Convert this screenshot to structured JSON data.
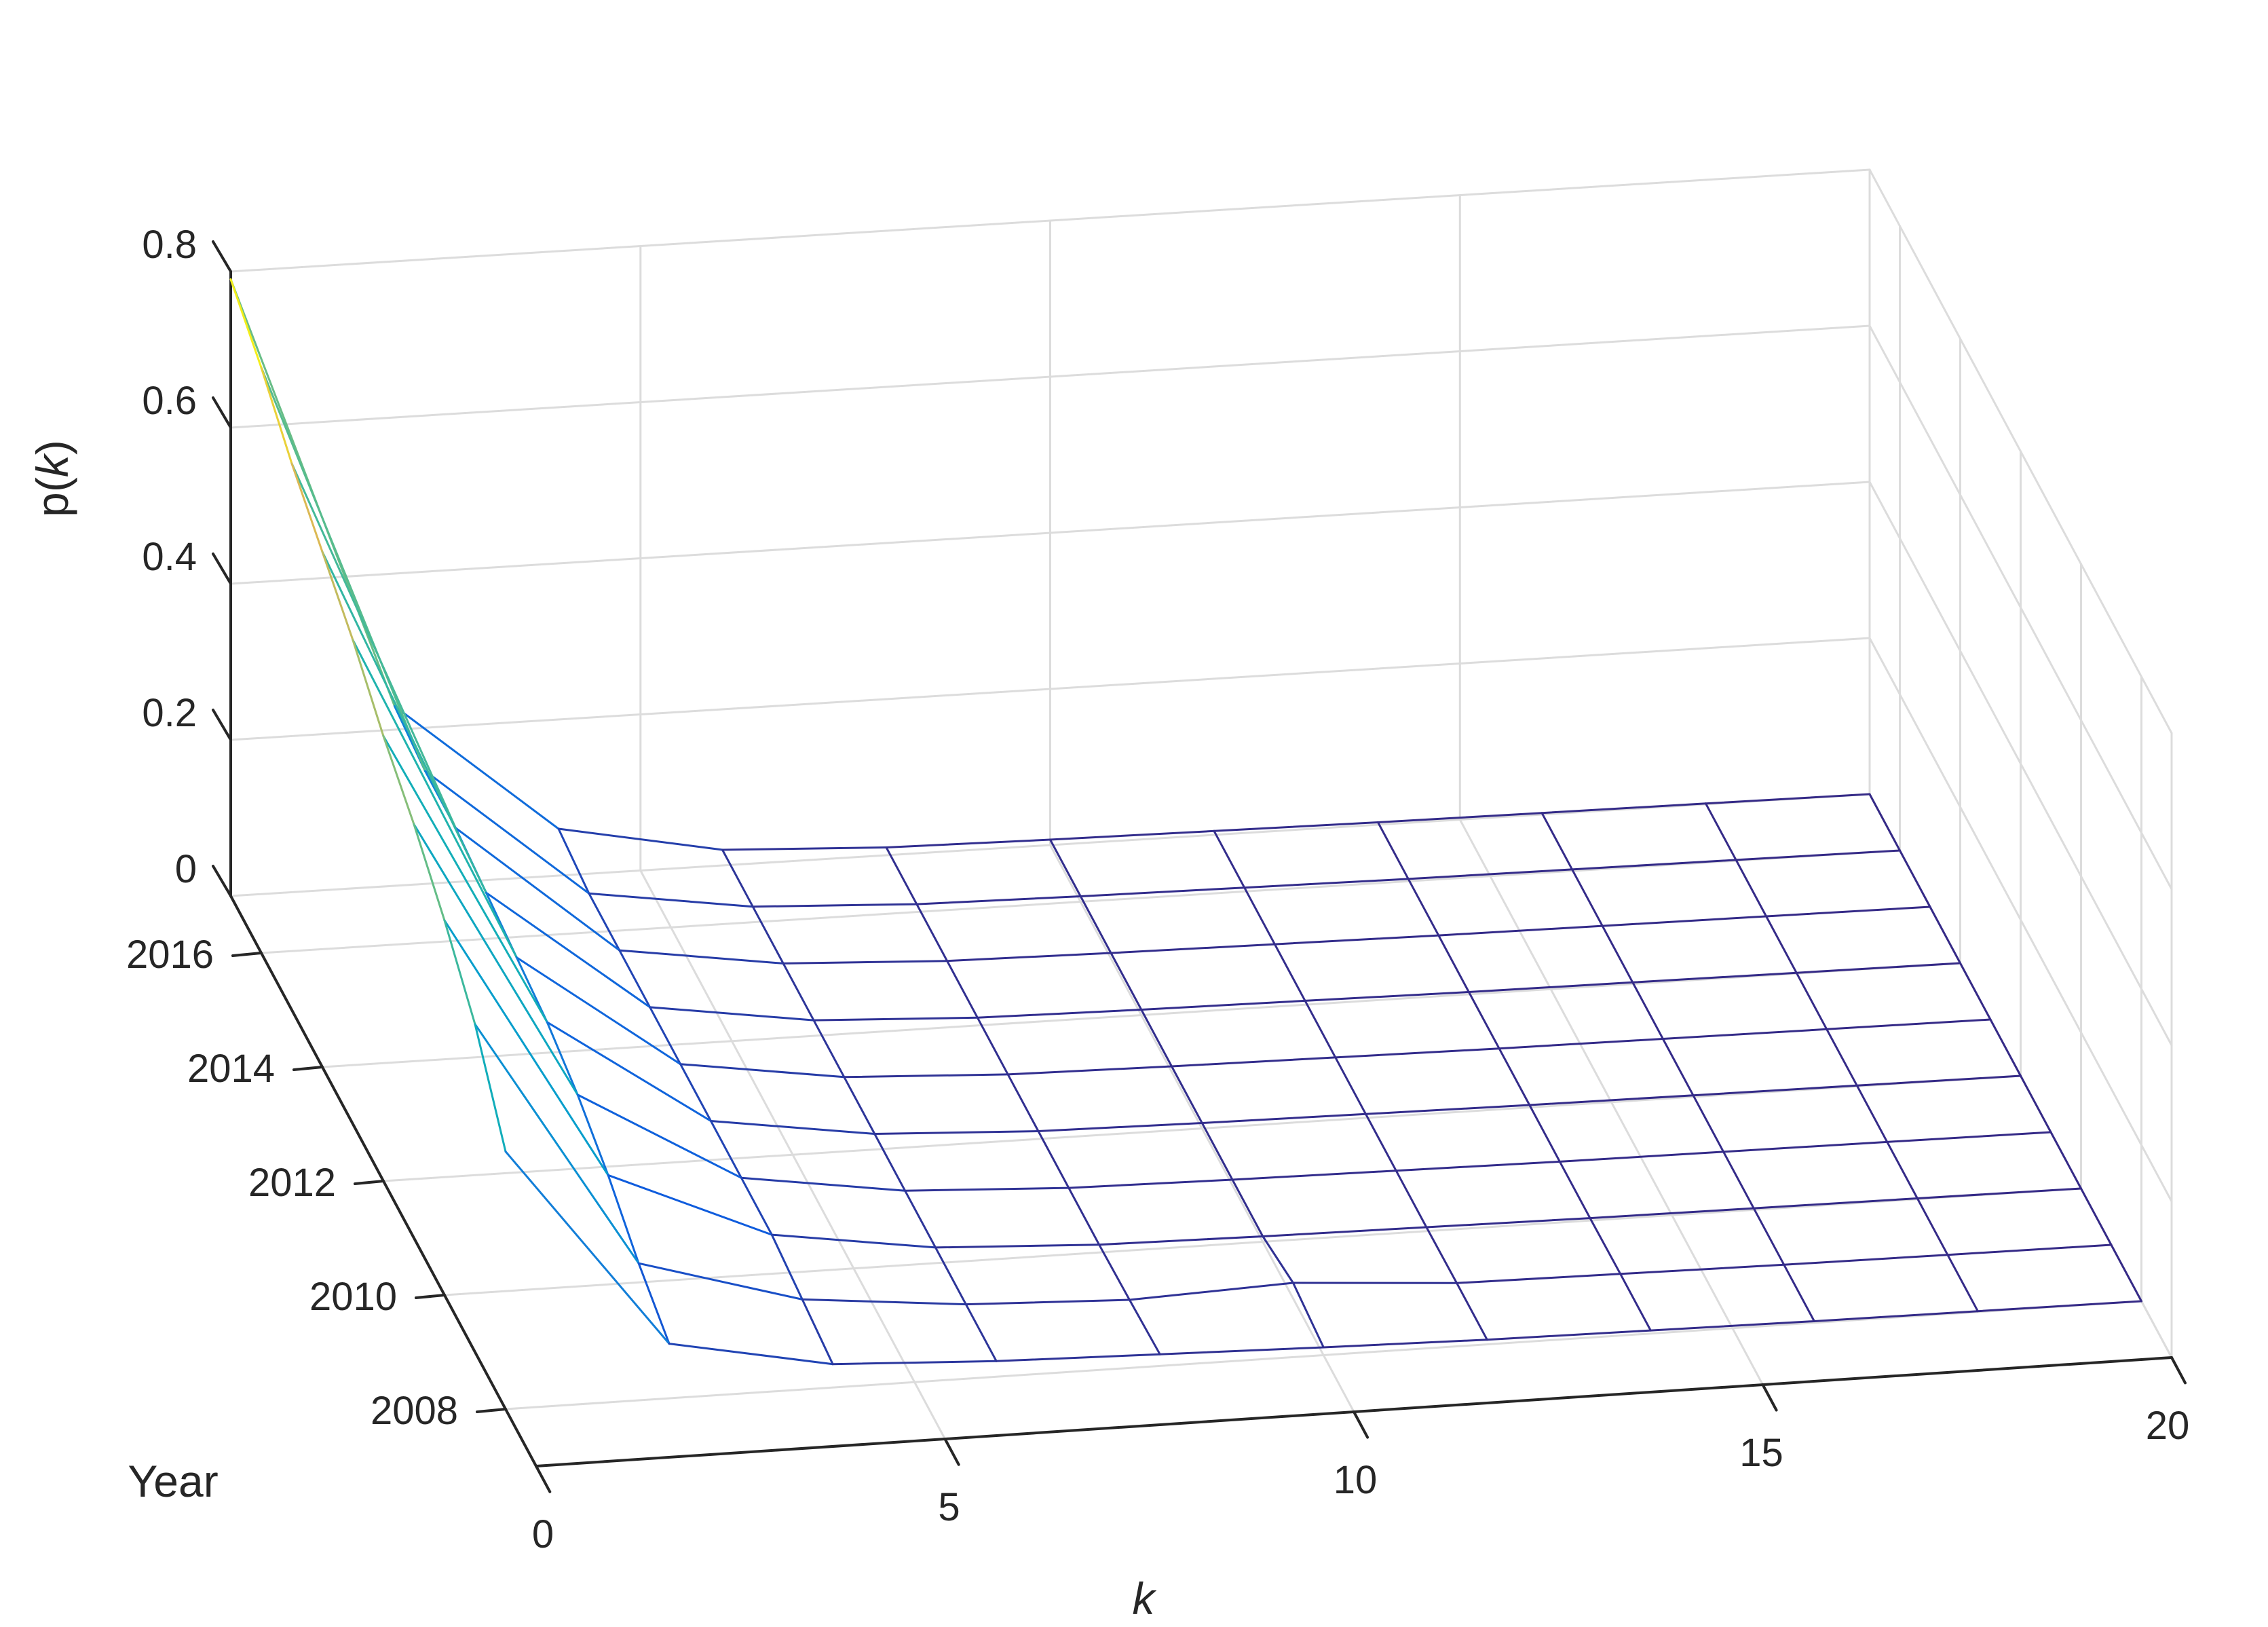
{
  "chart_data": {
    "type": "surface_mesh",
    "title": "",
    "xlabel": "k",
    "ylabel": "Year",
    "zlabel_prefix": "p(",
    "zlabel_var": "k",
    "zlabel_suffix": ")",
    "xlim": [
      0,
      20
    ],
    "ylim": [
      2007,
      2017
    ],
    "zlim": [
      0,
      0.8
    ],
    "x_ticks": [
      "0",
      "5",
      "10",
      "15",
      "20"
    ],
    "y_ticks": [
      "2008",
      "2010",
      "2012",
      "2014",
      "2016"
    ],
    "z_ticks": [
      "0",
      "0.2",
      "0.4",
      "0.6",
      "0.8"
    ],
    "grid": true,
    "colormap": "parula",
    "k_values": [
      0,
      2,
      4,
      6,
      8,
      10,
      12,
      14,
      16,
      18,
      20
    ],
    "years": [
      2008,
      2009,
      2010,
      2011,
      2012,
      2013,
      2014,
      2015,
      2016,
      2017
    ],
    "p": [
      [
        0.33,
        0.07,
        0.03,
        0.02,
        0.015,
        0.01,
        0.006,
        0.004,
        0.002,
        0.001,
        0.0
      ],
      [
        0.42,
        0.1,
        0.04,
        0.02,
        0.012,
        0.02,
        0.006,
        0.004,
        0.002,
        0.001,
        0.0
      ],
      [
        0.48,
        0.14,
        0.05,
        0.02,
        0.01,
        0.007,
        0.005,
        0.003,
        0.002,
        0.001,
        0.0
      ],
      [
        0.53,
        0.17,
        0.05,
        0.02,
        0.01,
        0.007,
        0.005,
        0.003,
        0.002,
        0.001,
        0.0
      ],
      [
        0.57,
        0.19,
        0.05,
        0.02,
        0.01,
        0.007,
        0.005,
        0.003,
        0.002,
        0.001,
        0.0
      ],
      [
        0.62,
        0.2,
        0.05,
        0.02,
        0.01,
        0.007,
        0.005,
        0.003,
        0.002,
        0.001,
        0.0
      ],
      [
        0.66,
        0.21,
        0.05,
        0.02,
        0.01,
        0.007,
        0.005,
        0.003,
        0.002,
        0.001,
        0.0
      ],
      [
        0.7,
        0.22,
        0.05,
        0.02,
        0.01,
        0.007,
        0.005,
        0.003,
        0.002,
        0.001,
        0.0
      ],
      [
        0.75,
        0.22,
        0.05,
        0.02,
        0.01,
        0.007,
        0.005,
        0.003,
        0.002,
        0.001,
        0.0
      ],
      [
        0.79,
        0.23,
        0.06,
        0.02,
        0.01,
        0.007,
        0.005,
        0.003,
        0.002,
        0.001,
        0.0
      ]
    ]
  }
}
